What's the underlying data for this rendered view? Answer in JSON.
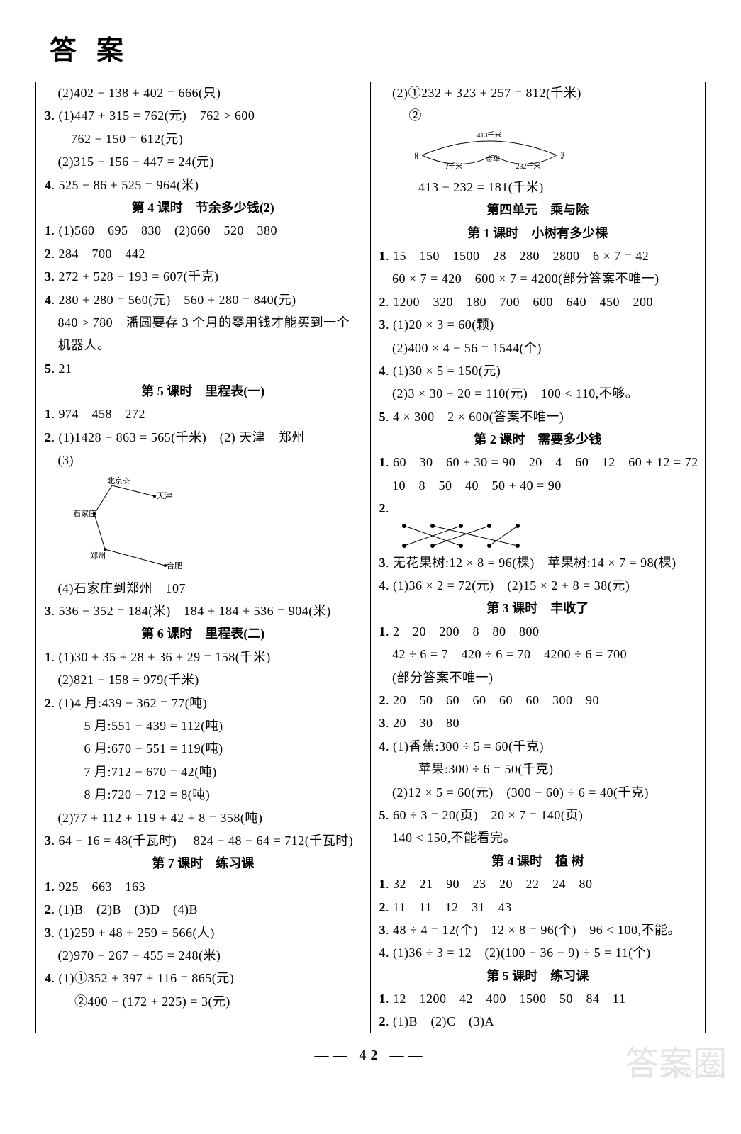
{
  "title": "答案",
  "pageNum": "42",
  "left": [
    {
      "type": "line",
      "text": "　(2)402 − 138 + 402 = 666(只)"
    },
    {
      "type": "line",
      "text": "3. (1)447 + 315 = 762(元)　762 > 600"
    },
    {
      "type": "line",
      "text": "　　762 − 150 = 612(元)"
    },
    {
      "type": "line",
      "text": "　(2)315 + 156 − 447 = 24(元)"
    },
    {
      "type": "line",
      "text": "4. 525 − 86 + 525 = 964(米)"
    },
    {
      "type": "header",
      "text": "第 4 课时　节余多少钱(2)"
    },
    {
      "type": "line",
      "text": "1. (1)560　695　830　(2)660　520　380"
    },
    {
      "type": "line",
      "text": "2. 284　700　442"
    },
    {
      "type": "line",
      "text": "3. 272 + 528 − 193 = 607(千克)"
    },
    {
      "type": "line",
      "text": "4. 280 + 280 = 560(元)　560 + 280 = 840(元)"
    },
    {
      "type": "line",
      "text": "　840 > 780　潘圆要存 3 个月的零用钱才能买到一个"
    },
    {
      "type": "line",
      "text": "　机器人。"
    },
    {
      "type": "line",
      "text": "5. 21"
    },
    {
      "type": "header",
      "text": "第 5 课时　里程表(一)"
    },
    {
      "type": "line",
      "text": "1. 974　458　272"
    },
    {
      "type": "line",
      "text": "2. (1)1428 − 863 = 565(千米)　(2) 天津　郑州"
    },
    {
      "type": "line",
      "text": "　(3)"
    },
    {
      "type": "map-diagram"
    },
    {
      "type": "line",
      "text": "　(4)石家庄到郑州　107"
    },
    {
      "type": "line",
      "text": "3. 536 − 352 = 184(米)　184 + 184 + 536 = 904(米)"
    },
    {
      "type": "header",
      "text": "第 6 课时　里程表(二)"
    },
    {
      "type": "line",
      "text": "1. (1)30 + 35 + 28 + 36 + 29 = 158(千米)"
    },
    {
      "type": "line",
      "text": "　(2)821 + 158 = 979(千米)"
    },
    {
      "type": "line",
      "text": "2. (1)4 月:439 − 362 = 77(吨)"
    },
    {
      "type": "line",
      "text": "　　　5 月:551 − 439 = 112(吨)"
    },
    {
      "type": "line",
      "text": "　　　6 月:670 − 551 = 119(吨)"
    },
    {
      "type": "line",
      "text": "　　　7 月:712 − 670 = 42(吨)"
    },
    {
      "type": "line",
      "text": "　　　8 月:720 − 712 = 8(吨)"
    },
    {
      "type": "line",
      "text": "　(2)77 + 112 + 119 + 42 + 8 = 358(吨)"
    },
    {
      "type": "line",
      "text": "3. 64 − 16 = 48(千瓦时)　 824 − 48 − 64 = 712(千瓦时)"
    },
    {
      "type": "header",
      "text": "第 7 课时　练习课"
    },
    {
      "type": "line",
      "text": "1. 925　663　163"
    },
    {
      "type": "line",
      "text": "2. (1)B　(2)B　(3)D　(4)B"
    },
    {
      "type": "line",
      "text": "3. (1)259 + 48 + 259 = 566(人)"
    },
    {
      "type": "line",
      "text": "　(2)970 − 267 − 455 = 248(米)"
    },
    {
      "type": "line",
      "text": "4. (1)①352 + 397 + 116 = 865(元)"
    },
    {
      "type": "line",
      "text": "　　  ②400 − (172 + 225) = 3(元)"
    }
  ],
  "right": [
    {
      "type": "line",
      "text": "　(2)①232 + 323 + 257 = 812(千米)"
    },
    {
      "type": "line",
      "text": "　　  ②"
    },
    {
      "type": "arc-diagram"
    },
    {
      "type": "line",
      "text": "　　　413 − 232 = 181(千米)"
    },
    {
      "type": "header",
      "text": "第四单元　乘与除"
    },
    {
      "type": "header",
      "text": "第 1 课时　小树有多少棵"
    },
    {
      "type": "line",
      "text": "1. 15　150　1500　28　280　2800　6 × 7 = 42"
    },
    {
      "type": "line",
      "text": "　60 × 7 = 420　600 × 7 = 4200(部分答案不唯一)"
    },
    {
      "type": "line",
      "text": "2. 1200　320　180　700　600　640　450　200"
    },
    {
      "type": "line",
      "text": "3. (1)20 × 3 = 60(颗)"
    },
    {
      "type": "line",
      "text": "　(2)400 × 4 − 56 = 1544(个)"
    },
    {
      "type": "line",
      "text": "4. (1)30 × 5 = 150(元)"
    },
    {
      "type": "line",
      "text": "　(2)3 × 30 + 20 = 110(元)　100 < 110,不够。"
    },
    {
      "type": "line",
      "text": "5. 4 × 300　2 × 600(答案不唯一)"
    },
    {
      "type": "header",
      "text": "第 2 课时　需要多少钱"
    },
    {
      "type": "line",
      "text": "1. 60　30　60 + 30 = 90　20　4　60　12　60 + 12 = 72"
    },
    {
      "type": "line",
      "text": "　10　8　50　40　50 + 40 = 90"
    },
    {
      "type": "line",
      "text": "2."
    },
    {
      "type": "match-diagram"
    },
    {
      "type": "line",
      "text": "3. 无花果树:12 × 8 = 96(棵)　苹果树:14 × 7 = 98(棵)"
    },
    {
      "type": "line",
      "text": "4. (1)36 × 2 = 72(元)　(2)15 × 2 + 8 = 38(元)"
    },
    {
      "type": "header",
      "text": "第 3 课时　丰收了"
    },
    {
      "type": "line",
      "text": "1. 2　20　200　8　80　800"
    },
    {
      "type": "line",
      "text": "　42 ÷ 6 = 7　420 ÷ 6 = 70　4200 ÷ 6 = 700"
    },
    {
      "type": "line",
      "text": "　(部分答案不唯一)"
    },
    {
      "type": "line",
      "text": "2. 20　50　60　60　60　60　300　90"
    },
    {
      "type": "line",
      "text": "3. 20　30　80"
    },
    {
      "type": "line",
      "text": "4. (1)香蕉:300 ÷ 5 = 60(千克)"
    },
    {
      "type": "line",
      "text": "　　　苹果:300 ÷ 6 = 50(千克)"
    },
    {
      "type": "line",
      "text": "　(2)12 × 5 = 60(元)　(300 − 60) ÷ 6 = 40(千克)"
    },
    {
      "type": "line",
      "text": "5. 60 ÷ 3 = 20(页)　20 × 7 = 140(页)"
    },
    {
      "type": "line",
      "text": "　140 < 150,不能看完。"
    },
    {
      "type": "header",
      "text": "第 4 课时　植 树"
    },
    {
      "type": "line",
      "text": "1. 32　21　90　23　20　22　24　80"
    },
    {
      "type": "line",
      "text": "2. 11　11　12　31　43"
    },
    {
      "type": "line",
      "text": "3. 48 ÷ 4 = 12(个)　12 × 8 = 96(个)　96 < 100,不能。"
    },
    {
      "type": "line",
      "text": "4. (1)36 ÷ 3 = 12　(2)(100 − 36 − 9) ÷ 5 = 11(个)"
    },
    {
      "type": "header",
      "text": "第 5 课时　练习课"
    },
    {
      "type": "line",
      "text": "1. 12　1200　42　400　1500　50　84　11"
    },
    {
      "type": "line",
      "text": "2. (1)B　(2)C　(3)A"
    }
  ],
  "arcDiagram": {
    "topLabel": "413千米",
    "leftLabel": "杭州",
    "midLabel1": "?千米",
    "midLabel2": "金华",
    "midLabel3": "232千米",
    "rightLabel": "温州"
  },
  "mapDiagram": {
    "labels": [
      "北京",
      "天津",
      "石家庄",
      "郑州",
      "合肥"
    ]
  }
}
